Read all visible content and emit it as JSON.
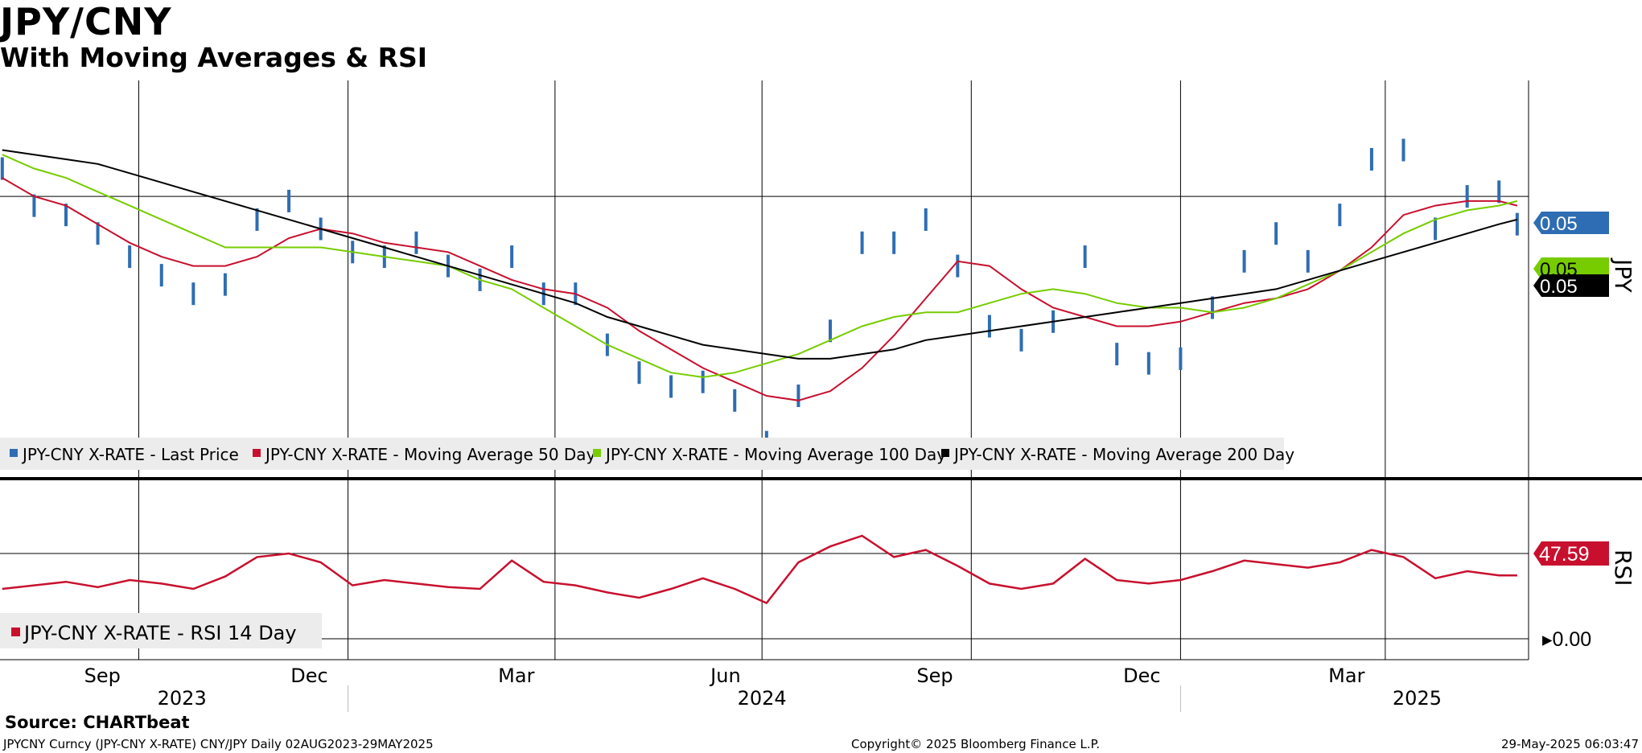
{
  "header": {
    "title": "JPY/CNY",
    "subtitle": "With Moving Averages & RSI"
  },
  "footer": {
    "source": "Source: CHARTbeat",
    "ticker_info": "JPYCNY Curncy (JPY-CNY X-RATE) CNY/JPY  Daily 02AUG2023-29MAY2025",
    "copyright": "Copyright© 2025 Bloomberg Finance L.P.",
    "timestamp": "29-May-2025 06:03:47"
  },
  "colors": {
    "price": "#2e6db3",
    "ma50": "#c8102e",
    "ma100": "#77cc00",
    "ma200": "#000000",
    "rsi": "#c8102e",
    "legend_bg": "#ececec"
  },
  "chart_data": [
    {
      "type": "line",
      "panel": "price",
      "unit_label": "JPY",
      "legend_placement": "bottom-left",
      "grid": true,
      "x": [
        "2023-08-02",
        "2023-08-16",
        "2023-08-30",
        "2023-09-13",
        "2023-09-27",
        "2023-10-11",
        "2023-10-25",
        "2023-11-08",
        "2023-11-22",
        "2023-12-06",
        "2023-12-20",
        "2024-01-03",
        "2024-01-17",
        "2024-01-31",
        "2024-02-14",
        "2024-02-28",
        "2024-03-13",
        "2024-03-27",
        "2024-04-10",
        "2024-04-24",
        "2024-05-08",
        "2024-05-22",
        "2024-06-05",
        "2024-06-19",
        "2024-07-03",
        "2024-07-17",
        "2024-07-31",
        "2024-08-14",
        "2024-08-28",
        "2024-09-11",
        "2024-09-25",
        "2024-10-09",
        "2024-10-23",
        "2024-11-06",
        "2024-11-20",
        "2024-12-04",
        "2024-12-18",
        "2025-01-01",
        "2025-01-15",
        "2025-01-29",
        "2025-02-12",
        "2025-02-26",
        "2025-03-12",
        "2025-03-26",
        "2025-04-09",
        "2025-04-23",
        "2025-05-07",
        "2025-05-21",
        "2025-05-29"
      ],
      "series": [
        {
          "name": "JPY-CNY X-RATE - Last Price",
          "values": [
            0.0506,
            0.0498,
            0.0496,
            0.0492,
            0.0487,
            0.0483,
            0.0479,
            0.0481,
            0.0495,
            0.0499,
            0.0493,
            0.0488,
            0.0487,
            0.049,
            0.0485,
            0.0482,
            0.0487,
            0.0479,
            0.0479,
            0.0468,
            0.0462,
            0.0459,
            0.046,
            0.0456,
            0.0447,
            0.0457,
            0.0471,
            0.049,
            0.049,
            0.0495,
            0.0485,
            0.0472,
            0.0469,
            0.0473,
            0.0487,
            0.0466,
            0.0464,
            0.0465,
            0.0476,
            0.0486,
            0.0492,
            0.0486,
            0.0496,
            0.0508,
            0.051,
            0.0493,
            0.05,
            0.0501,
            0.0494
          ]
        },
        {
          "name": "JPY-CNY X-RATE - Moving Average 50 Day",
          "values": [
            0.0504,
            0.05,
            0.0498,
            0.0494,
            0.049,
            0.0487,
            0.0485,
            0.0485,
            0.0487,
            0.0491,
            0.0493,
            0.0492,
            0.049,
            0.0489,
            0.0488,
            0.0485,
            0.0482,
            0.048,
            0.0479,
            0.0476,
            0.0471,
            0.0467,
            0.0463,
            0.046,
            0.0457,
            0.0456,
            0.0458,
            0.0463,
            0.047,
            0.0478,
            0.0486,
            0.0485,
            0.048,
            0.0476,
            0.0474,
            0.0472,
            0.0472,
            0.0473,
            0.0475,
            0.0477,
            0.0478,
            0.048,
            0.0484,
            0.0489,
            0.0496,
            0.0498,
            0.0499,
            0.0499,
            0.0498
          ]
        },
        {
          "name": "JPY-CNY X-RATE - Moving Average 100 Day",
          "values": [
            0.0509,
            0.0506,
            0.0504,
            0.0501,
            0.0498,
            0.0495,
            0.0492,
            0.0489,
            0.0489,
            0.0489,
            0.0489,
            0.0488,
            0.0487,
            0.0486,
            0.0485,
            0.0482,
            0.048,
            0.0476,
            0.0472,
            0.0468,
            0.0465,
            0.0462,
            0.0461,
            0.0462,
            0.0464,
            0.0466,
            0.0469,
            0.0472,
            0.0474,
            0.0475,
            0.0475,
            0.0477,
            0.0479,
            0.048,
            0.0479,
            0.0477,
            0.0476,
            0.0476,
            0.0475,
            0.0476,
            0.0478,
            0.0481,
            0.0484,
            0.0488,
            0.0492,
            0.0495,
            0.0497,
            0.0498,
            0.0499
          ]
        },
        {
          "name": "JPY-CNY X-RATE - Moving Average 200 Day",
          "values": [
            0.051,
            0.0509,
            0.0508,
            0.0507,
            0.0505,
            0.0503,
            0.0501,
            0.0499,
            0.0497,
            0.0495,
            0.0493,
            0.0491,
            0.0489,
            0.0487,
            0.0485,
            0.0483,
            0.0481,
            0.0479,
            0.0477,
            0.0474,
            0.0472,
            0.047,
            0.0468,
            0.0467,
            0.0466,
            0.0465,
            0.0465,
            0.0466,
            0.0467,
            0.0469,
            0.047,
            0.0471,
            0.0472,
            0.0473,
            0.0474,
            0.0475,
            0.0476,
            0.0477,
            0.0478,
            0.0479,
            0.048,
            0.0482,
            0.0484,
            0.0486,
            0.0488,
            0.049,
            0.0492,
            0.0494,
            0.0495
          ]
        }
      ],
      "last_values": [
        {
          "series": "JPY-CNY X-RATE - Last Price",
          "label": "0.05"
        },
        {
          "series": "JPY-CNY X-RATE - Moving Average 100 Day",
          "label": "0.05"
        },
        {
          "series": "JPY-CNY X-RATE - Moving Average 200 Day",
          "label": "0.05"
        }
      ],
      "ylim": [
        0.044,
        0.0525
      ]
    },
    {
      "type": "line",
      "panel": "rsi",
      "unit_label": "RSI",
      "legend_placement": "bottom-left",
      "x": [
        "2023-08-02",
        "2023-08-16",
        "2023-08-30",
        "2023-09-13",
        "2023-09-27",
        "2023-10-11",
        "2023-10-25",
        "2023-11-08",
        "2023-11-22",
        "2023-12-06",
        "2023-12-20",
        "2024-01-03",
        "2024-01-17",
        "2024-01-31",
        "2024-02-14",
        "2024-02-28",
        "2024-03-13",
        "2024-03-27",
        "2024-04-10",
        "2024-04-24",
        "2024-05-08",
        "2024-05-22",
        "2024-06-05",
        "2024-06-19",
        "2024-07-03",
        "2024-07-17",
        "2024-07-31",
        "2024-08-14",
        "2024-08-28",
        "2024-09-11",
        "2024-09-25",
        "2024-10-09",
        "2024-10-23",
        "2024-11-06",
        "2024-11-20",
        "2024-12-04",
        "2024-12-18",
        "2025-01-01",
        "2025-01-15",
        "2025-01-29",
        "2025-02-12",
        "2025-02-26",
        "2025-03-12",
        "2025-03-26",
        "2025-04-09",
        "2025-04-23",
        "2025-05-07",
        "2025-05-21",
        "2025-05-29"
      ],
      "series": [
        {
          "name": "JPY-CNY X-RATE - RSI 14 Day",
          "values": [
            40,
            42,
            44,
            41,
            45,
            43,
            40,
            47,
            58,
            60,
            55,
            42,
            45,
            43,
            41,
            40,
            56,
            44,
            42,
            38,
            35,
            40,
            46,
            40,
            32,
            55,
            64,
            70,
            58,
            62,
            53,
            43,
            40,
            43,
            57,
            45,
            43,
            45,
            50,
            56,
            54,
            52,
            55,
            62,
            58,
            46,
            50,
            47.59,
            47.59
          ]
        }
      ],
      "last_value_label": "47.59",
      "zero_label": "0.00",
      "ylim": [
        0,
        100
      ]
    }
  ],
  "axes": {
    "months": [
      "Sep",
      "Dec",
      "Mar",
      "Jun",
      "Sep",
      "Dec",
      "Mar"
    ],
    "years": [
      "2023",
      "2024",
      "2025"
    ]
  }
}
